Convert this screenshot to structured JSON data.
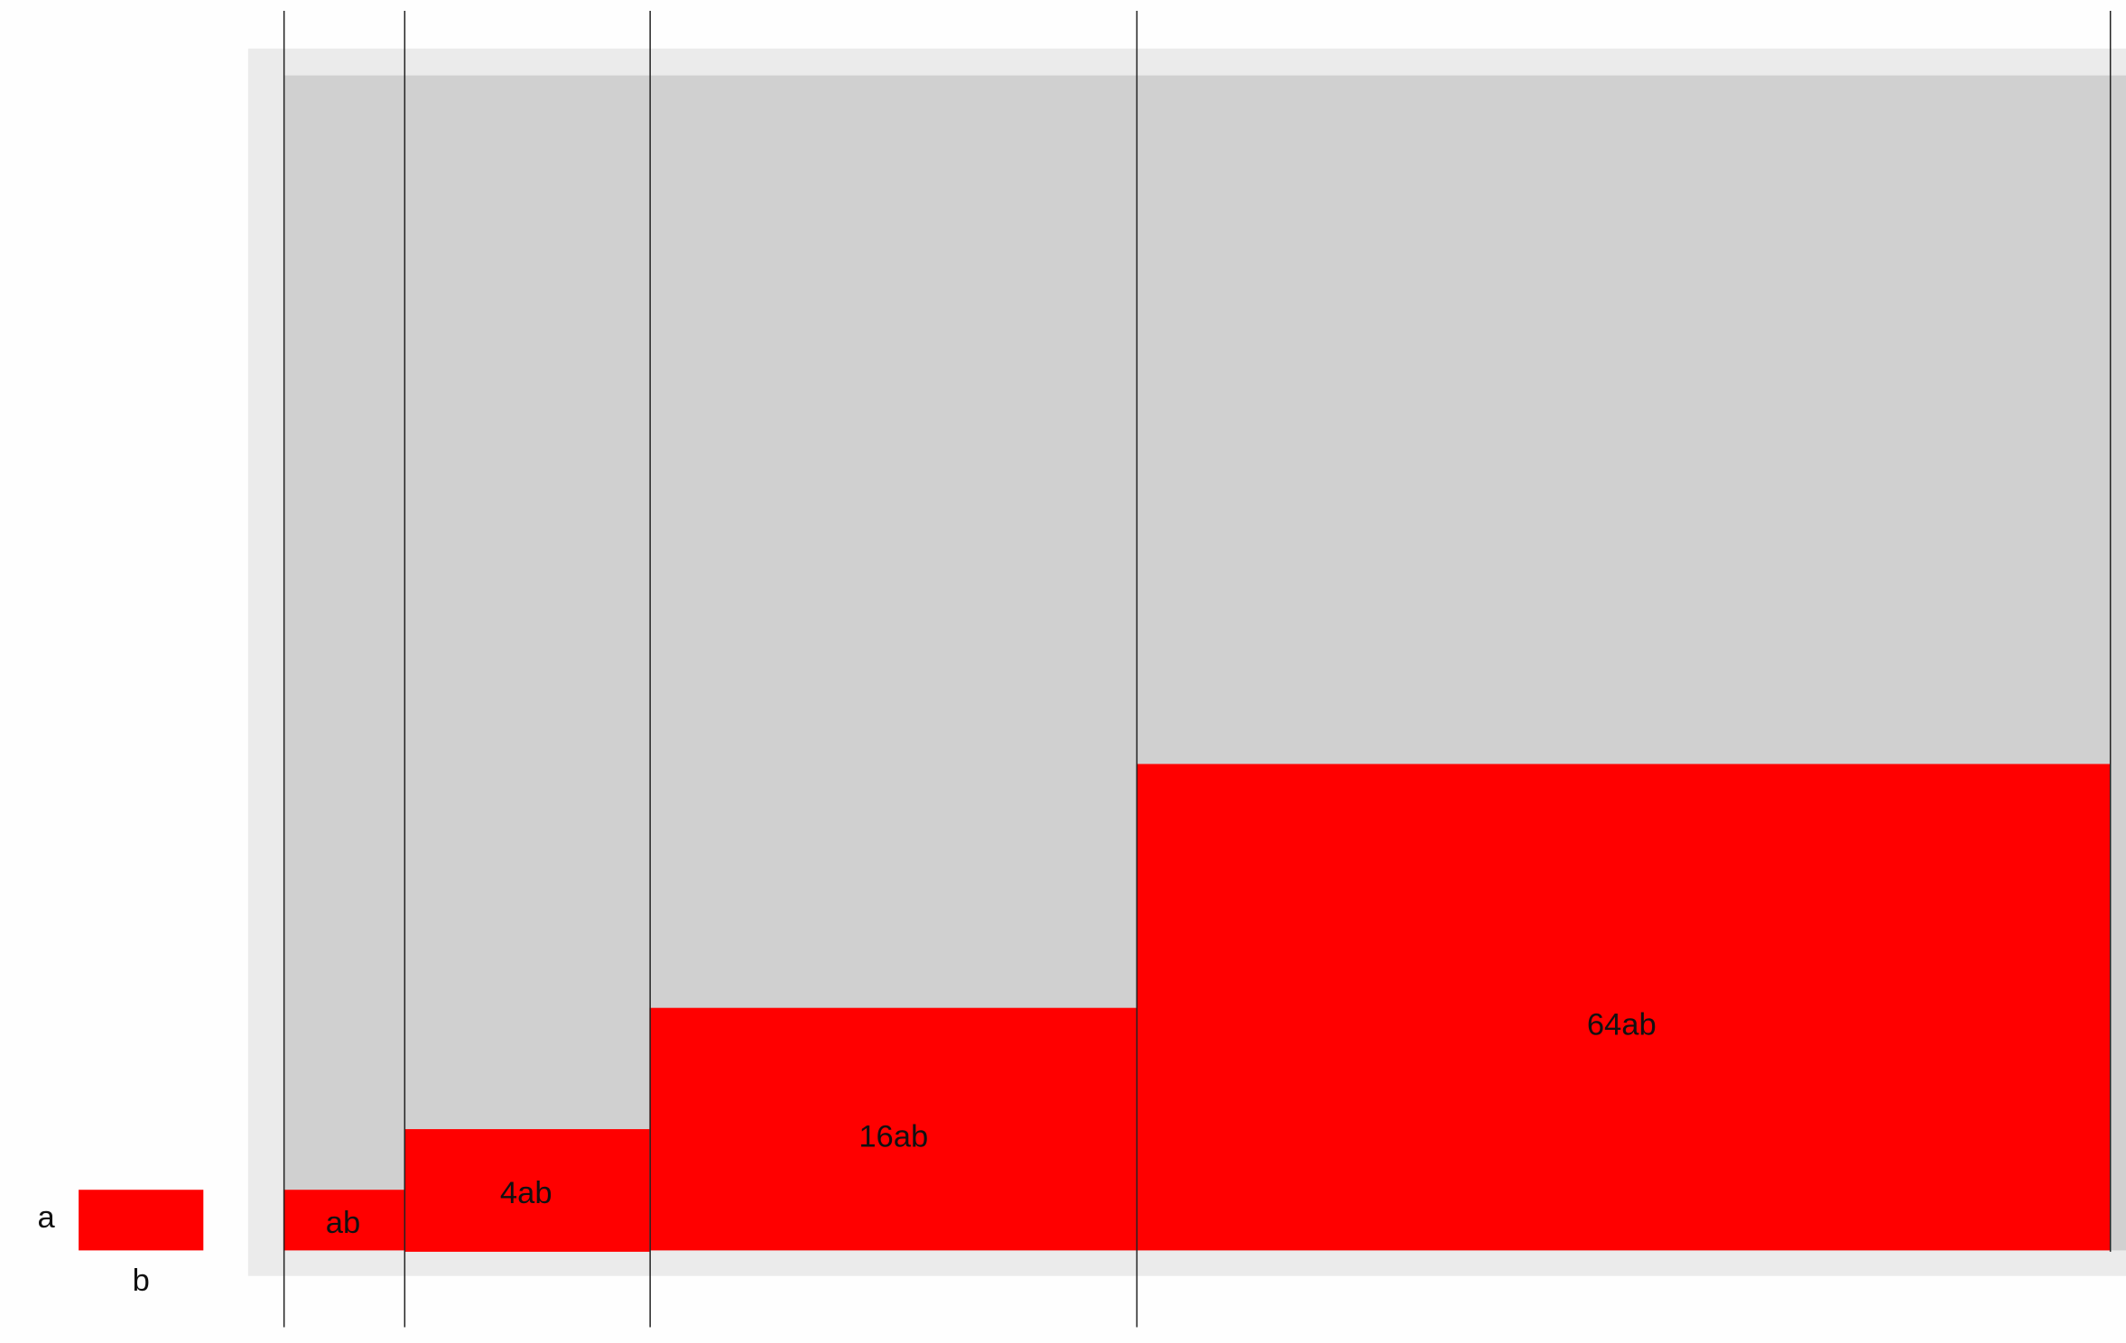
{
  "colors": {
    "page_background": "#fefefe",
    "panel_border": "#ebebeb",
    "panel_fill": "#d0d0d0",
    "area_fill": "#ff0000",
    "divider_line": "#222222",
    "text": "#111111"
  },
  "legend": {
    "side_a": "a",
    "side_b": "b"
  },
  "areas": [
    {
      "label": "ab",
      "multiplier": 1
    },
    {
      "label": "4ab",
      "multiplier": 4
    },
    {
      "label": "16ab",
      "multiplier": 16
    },
    {
      "label": "64ab",
      "multiplier": 64
    }
  ]
}
